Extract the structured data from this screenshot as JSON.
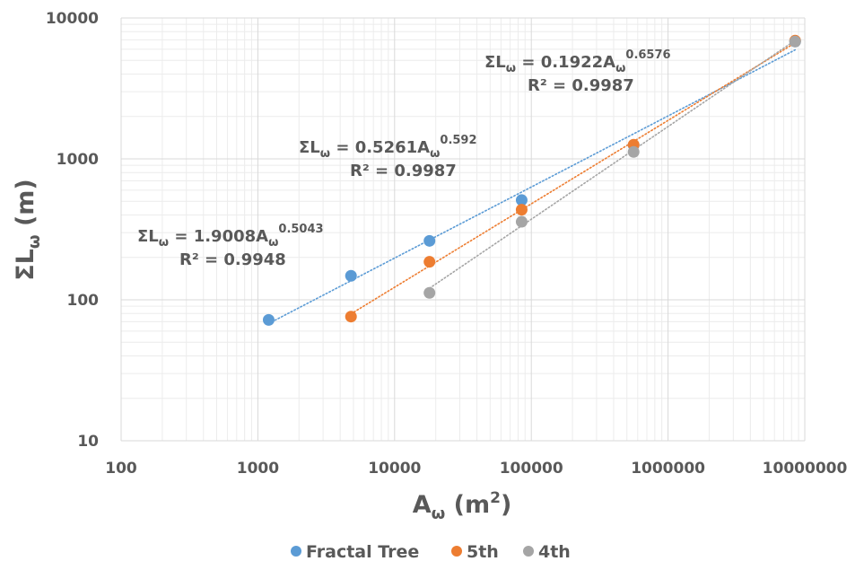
{
  "chart_data": {
    "type": "scatter",
    "title": "",
    "xlabel": {
      "base": "A",
      "sub": "ω",
      "unit_open": " (m",
      "unit_sup": "2",
      "unit_close": ")"
    },
    "ylabel": {
      "base": "ΣL",
      "sub": "ω",
      "unit": " (m)"
    },
    "x_scale": "log",
    "y_scale": "log",
    "xlim": [
      100,
      10000000
    ],
    "ylim": [
      10,
      10000
    ],
    "x_ticks": [
      "100",
      "1000",
      "10000",
      "100000",
      "1000000",
      "10000000"
    ],
    "y_ticks": [
      "10",
      "100",
      "1000",
      "10000"
    ],
    "grid": true,
    "legend_position": "bottom",
    "series": [
      {
        "name": "Fractal Tree",
        "color": "#5b9bd5",
        "x": [
          1200,
          4800,
          18000,
          85000,
          560000,
          8500000
        ],
        "y": [
          72,
          148,
          262,
          510,
          1250,
          6800
        ],
        "trendline": {
          "coef": 1.9008,
          "exp": 0.5043
        }
      },
      {
        "name": "5th",
        "color": "#ed7d31",
        "x": [
          4800,
          18000,
          85000,
          560000,
          8500000
        ],
        "y": [
          76,
          186,
          436,
          1260,
          6900
        ],
        "trendline": {
          "coef": 0.5261,
          "exp": 0.592
        }
      },
      {
        "name": "4th",
        "color": "#a5a5a5",
        "x": [
          18000,
          85000,
          560000,
          8500000
        ],
        "y": [
          112,
          358,
          1120,
          6800
        ],
        "trendline": {
          "coef": 0.1922,
          "exp": 0.6576
        }
      }
    ],
    "annotations": [
      {
        "eq": {
          "lhs": "ΣL",
          "lhs_sub": "ω",
          "mid": " = 1.9008A",
          "mid_sub": "ω",
          "sup": "0.5043"
        },
        "r2": "R² = 0.9948"
      },
      {
        "eq": {
          "lhs": "ΣL",
          "lhs_sub": "ω",
          "mid": " = 0.5261A",
          "mid_sub": "ω",
          "sup": "0.592"
        },
        "r2": "R² = 0.9987"
      },
      {
        "eq": {
          "lhs": "ΣL",
          "lhs_sub": "ω",
          "mid": " = 0.1922A",
          "mid_sub": "ω",
          "sup": "0.6576"
        },
        "r2": "R² = 0.9987"
      }
    ]
  }
}
